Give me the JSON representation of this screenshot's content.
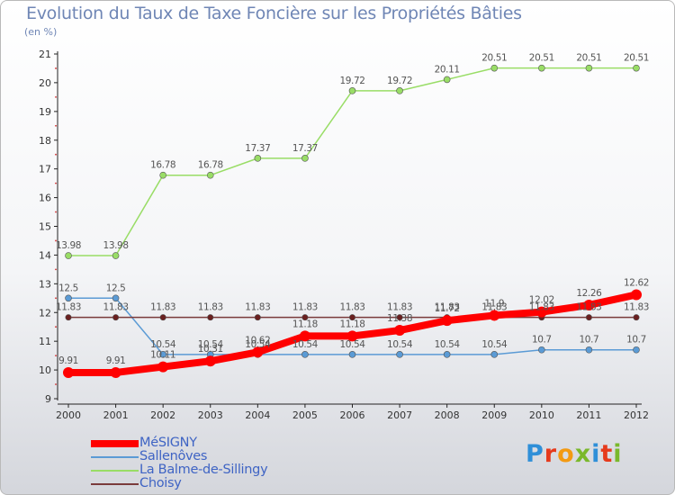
{
  "title": "Evolution du Taux de Taxe Foncière sur les Propriétés Bâties",
  "unit": "(en %)",
  "brand": {
    "text": "Proxiti",
    "letter_colors": [
      "#2f8fd8",
      "#e63a1c",
      "#f39a12",
      "#7ab82b",
      "#2f8fd8",
      "#e63a1c",
      "#7ab82b"
    ]
  },
  "chart_data": {
    "type": "line",
    "title": "Evolution du Taux de Taxe Foncière sur les Propriétés Bâties",
    "ylabel": "(en %)",
    "xlabel": "",
    "x": [
      "2000",
      "2001",
      "2002",
      "2003",
      "2004",
      "2005",
      "2006",
      "2007",
      "2008",
      "2009",
      "2010",
      "2011",
      "2012"
    ],
    "ylim": [
      9,
      21
    ],
    "yticks": [
      9,
      10,
      11,
      12,
      13,
      14,
      15,
      16,
      17,
      18,
      19,
      20,
      21
    ],
    "grid": false,
    "legend_position": "bottom-left",
    "series": [
      {
        "name": "MéSIGNY",
        "color": "#ff0000",
        "values": [
          9.91,
          9.91,
          10.11,
          10.31,
          10.62,
          11.18,
          11.18,
          11.38,
          11.72,
          11.9,
          12.02,
          12.26,
          12.62
        ],
        "labels": [
          "9.91",
          "9.91",
          "10.11",
          "10.31",
          "10.62",
          "11.18",
          "11.18",
          "11.38",
          "11.72",
          "11.9",
          "12.02",
          "12.26",
          "12.62"
        ]
      },
      {
        "name": "Sallenôves",
        "color": "#5b9bd5",
        "values": [
          12.5,
          12.5,
          10.54,
          10.54,
          10.54,
          10.54,
          10.54,
          10.54,
          10.54,
          10.54,
          10.7,
          10.7,
          10.7
        ],
        "labels": [
          "12.5",
          "12.5",
          "10.54",
          "10.54",
          "10.54",
          "10.54",
          "10.54",
          "10.54",
          "10.54",
          "10.54",
          "10.7",
          "10.7",
          "10.7"
        ]
      },
      {
        "name": "La Balme-de-Sillingy",
        "color": "#99dd66",
        "values": [
          13.98,
          13.98,
          16.78,
          16.78,
          17.37,
          17.37,
          19.72,
          19.72,
          20.11,
          20.51,
          20.51,
          20.51,
          20.51
        ],
        "labels": [
          "13.98",
          "13.98",
          "16.78",
          "16.78",
          "17.37",
          "17.37",
          "19.72",
          "19.72",
          "20.11",
          "20.51",
          "20.51",
          "20.51",
          "20.51"
        ]
      },
      {
        "name": "Choisy",
        "color": "#7a3b3b",
        "values": [
          11.83,
          11.83,
          11.83,
          11.83,
          11.83,
          11.83,
          11.83,
          11.83,
          11.83,
          11.83,
          11.83,
          11.83,
          11.83
        ],
        "labels": [
          "11.83",
          "11.83",
          "11.83",
          "11.83",
          "11.83",
          "11.83",
          "11.83",
          "11.83",
          "11.83",
          "11.83",
          "11.83",
          "11.83",
          "11.83"
        ]
      }
    ]
  }
}
